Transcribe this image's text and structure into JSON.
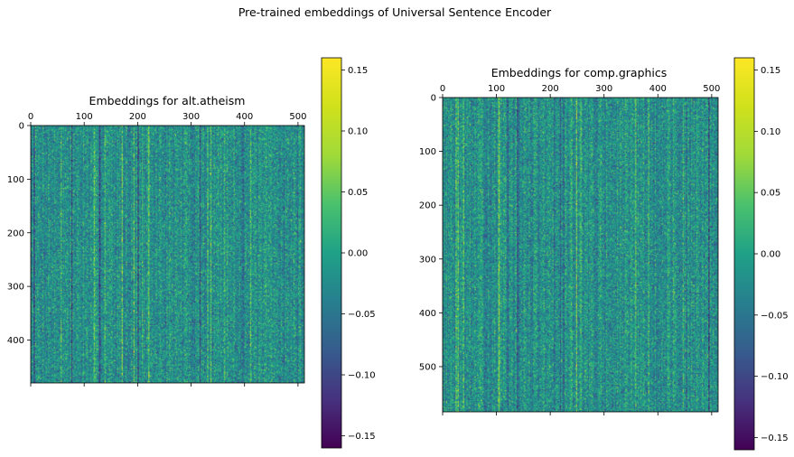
{
  "figure": {
    "title": "Pre-trained embeddings of Universal Sentence Encoder"
  },
  "chart_data": [
    {
      "type": "heatmap",
      "title": "Embeddings for alt.atheism",
      "xlim": [
        0,
        512
      ],
      "ylim": [
        0,
        480
      ],
      "x_ticks": [
        0,
        100,
        200,
        300,
        400,
        500
      ],
      "y_ticks": [
        0,
        100,
        200,
        300,
        400
      ],
      "x_tick_labels_position": "top",
      "colormap": "viridis",
      "value_range": [
        -0.16,
        0.16
      ],
      "colorbar": {
        "ticks": [
          0.15,
          0.1,
          0.05,
          0.0,
          -0.05,
          -0.1,
          -0.15
        ],
        "tick_labels": [
          "0.15",
          "0.10",
          "0.05",
          "0.00",
          "−0.05",
          "−0.10",
          "−0.15"
        ]
      },
      "grid": false
    },
    {
      "type": "heatmap",
      "title": "Embeddings for comp.graphics",
      "xlim": [
        0,
        512
      ],
      "ylim": [
        0,
        584
      ],
      "x_ticks": [
        0,
        100,
        200,
        300,
        400,
        500
      ],
      "y_ticks": [
        0,
        100,
        200,
        300,
        400,
        500
      ],
      "x_tick_labels_position": "top",
      "colormap": "viridis",
      "value_range": [
        -0.16,
        0.16
      ],
      "colorbar": {
        "ticks": [
          0.15,
          0.1,
          0.05,
          0.0,
          -0.05,
          -0.1,
          -0.15
        ],
        "tick_labels": [
          "0.15",
          "0.10",
          "0.05",
          "0.00",
          "−0.05",
          "−0.10",
          "−0.15"
        ]
      },
      "grid": false
    }
  ]
}
